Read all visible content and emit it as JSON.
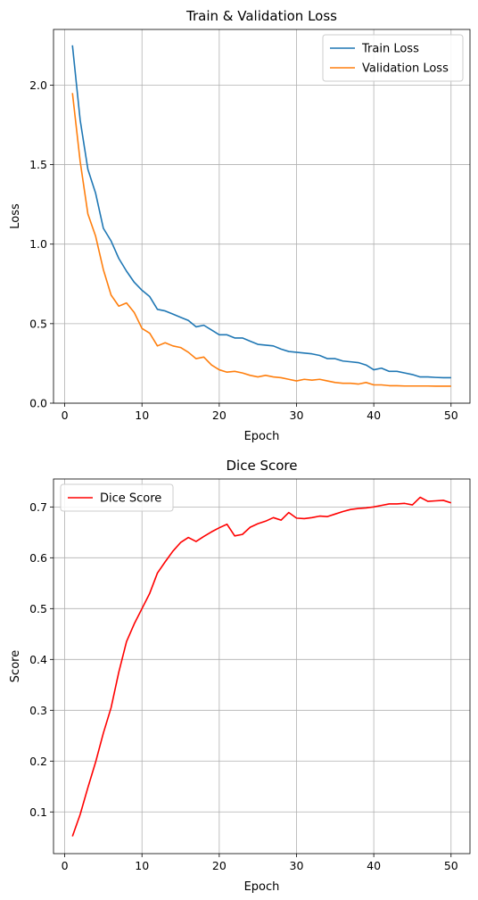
{
  "chart_data": [
    {
      "type": "line",
      "title": "Train & Validation Loss",
      "xlabel": "Epoch",
      "ylabel": "Loss",
      "xlim": [
        -1.45,
        52.45
      ],
      "ylim": [
        0,
        2.35
      ],
      "xticks": [
        0,
        10,
        20,
        30,
        40,
        50
      ],
      "yticks": [
        0.0,
        0.5,
        1.0,
        1.5,
        2.0
      ],
      "ytick_labels": [
        "0.0",
        "0.5",
        "1.0",
        "1.5",
        "2.0"
      ],
      "grid": true,
      "legend": "top-right",
      "x": [
        1,
        2,
        3,
        4,
        5,
        6,
        7,
        8,
        9,
        10,
        11,
        12,
        13,
        14,
        15,
        16,
        17,
        18,
        19,
        20,
        21,
        22,
        23,
        24,
        25,
        26,
        27,
        28,
        29,
        30,
        31,
        32,
        33,
        34,
        35,
        36,
        37,
        38,
        39,
        40,
        41,
        42,
        43,
        44,
        45,
        46,
        47,
        48,
        49,
        50
      ],
      "series": [
        {
          "name": "Train Loss",
          "color": "#1f77b4",
          "values": [
            2.25,
            1.78,
            1.47,
            1.32,
            1.1,
            1.02,
            0.91,
            0.83,
            0.76,
            0.71,
            0.67,
            0.59,
            0.58,
            0.56,
            0.54,
            0.52,
            0.48,
            0.49,
            0.46,
            0.43,
            0.43,
            0.41,
            0.41,
            0.39,
            0.37,
            0.365,
            0.36,
            0.34,
            0.325,
            0.32,
            0.315,
            0.31,
            0.3,
            0.28,
            0.28,
            0.265,
            0.26,
            0.255,
            0.24,
            0.21,
            0.22,
            0.2,
            0.2,
            0.19,
            0.18,
            0.165,
            0.165,
            0.162,
            0.16,
            0.16
          ]
        },
        {
          "name": "Validation Loss",
          "color": "#ff7f0e",
          "values": [
            1.95,
            1.52,
            1.19,
            1.05,
            0.84,
            0.68,
            0.61,
            0.63,
            0.57,
            0.47,
            0.44,
            0.36,
            0.38,
            0.36,
            0.35,
            0.32,
            0.28,
            0.29,
            0.24,
            0.21,
            0.195,
            0.2,
            0.19,
            0.175,
            0.165,
            0.175,
            0.165,
            0.16,
            0.15,
            0.14,
            0.15,
            0.145,
            0.15,
            0.14,
            0.13,
            0.125,
            0.125,
            0.12,
            0.13,
            0.115,
            0.115,
            0.11,
            0.11,
            0.108,
            0.108,
            0.108,
            0.108,
            0.107,
            0.107,
            0.107
          ]
        }
      ]
    },
    {
      "type": "line",
      "title": "Dice Score",
      "xlabel": "Epoch",
      "ylabel": "Score",
      "xlim": [
        -1.45,
        52.45
      ],
      "ylim": [
        0.018,
        0.755
      ],
      "xticks": [
        0,
        10,
        20,
        30,
        40,
        50
      ],
      "yticks": [
        0.1,
        0.2,
        0.3,
        0.4,
        0.5,
        0.6,
        0.7
      ],
      "ytick_labels": [
        "0.1",
        "0.2",
        "0.3",
        "0.4",
        "0.5",
        "0.6",
        "0.7"
      ],
      "grid": true,
      "legend": "top-left",
      "x": [
        1,
        2,
        3,
        4,
        5,
        6,
        7,
        8,
        9,
        10,
        11,
        12,
        13,
        14,
        15,
        16,
        17,
        18,
        19,
        20,
        21,
        22,
        23,
        24,
        25,
        26,
        27,
        28,
        29,
        30,
        31,
        32,
        33,
        34,
        35,
        36,
        37,
        38,
        39,
        40,
        41,
        42,
        43,
        44,
        45,
        46,
        47,
        48,
        49,
        50
      ],
      "series": [
        {
          "name": "Dice Score",
          "color": "#ff0000",
          "values": [
            0.052,
            0.095,
            0.148,
            0.198,
            0.255,
            0.305,
            0.375,
            0.435,
            0.47,
            0.5,
            0.53,
            0.57,
            0.592,
            0.613,
            0.63,
            0.64,
            0.632,
            0.642,
            0.651,
            0.659,
            0.666,
            0.643,
            0.646,
            0.66,
            0.667,
            0.672,
            0.679,
            0.674,
            0.689,
            0.678,
            0.677,
            0.679,
            0.682,
            0.681,
            0.686,
            0.691,
            0.695,
            0.697,
            0.698,
            0.7,
            0.703,
            0.706,
            0.706,
            0.707,
            0.704,
            0.719,
            0.711,
            0.712,
            0.713,
            0.708
          ]
        }
      ]
    }
  ]
}
